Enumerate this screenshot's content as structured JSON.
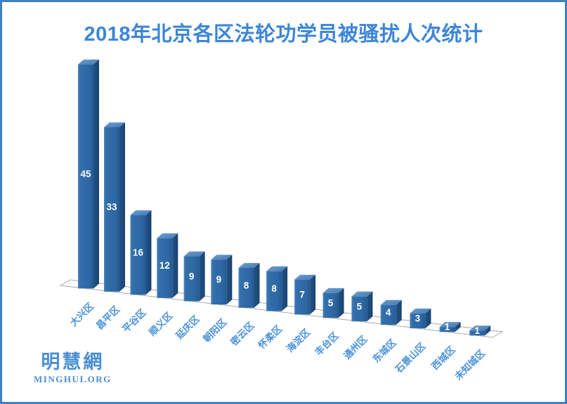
{
  "frame": {
    "border_color": "#3c80c8",
    "background": "#ffffff"
  },
  "title": {
    "text": "2018年北京各区法轮功学员被骚扰人次统计",
    "color": "#3c86d8"
  },
  "watermark": {
    "cjk": "明慧網",
    "latin": "MINGHUI.ORG",
    "color": "#4a8fd3"
  },
  "chart_data": {
    "type": "bar",
    "projection": "3d",
    "title": "2018年北京各区法轮功学员被骚扰人次统计",
    "categories": [
      "大兴区",
      "昌平区",
      "平谷区",
      "顺义区",
      "延庆区",
      "朝阳区",
      "密云区",
      "怀柔区",
      "海淀区",
      "丰台区",
      "通州区",
      "东城区",
      "石景山区",
      "西城区",
      "未知城区"
    ],
    "values": [
      45,
      33,
      16,
      12,
      9,
      9,
      8,
      8,
      7,
      5,
      5,
      4,
      3,
      1,
      1
    ],
    "data_labels": true,
    "data_label_position": "inside-center",
    "category_label_rotation_deg": -45,
    "legend": "none",
    "gridlines": false,
    "value_axis_visible": false,
    "colors": {
      "bar_front": "#2e67a4",
      "bar_front_highlight": "#4a84bb",
      "bar_front_shade": "#265a93",
      "bar_side": "#1d4e7c",
      "bar_top": "#4f87c0",
      "value_label": "#ffffff",
      "category_label": "#4b92da",
      "floor_stroke": "#a6a9ad",
      "floor_fill": "#ffffff"
    }
  }
}
